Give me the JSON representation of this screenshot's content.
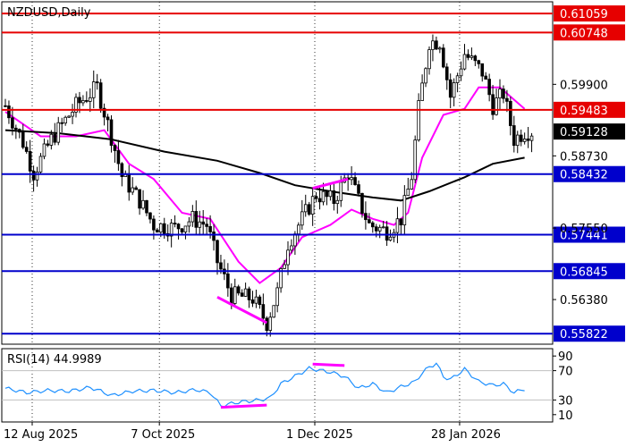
{
  "chart_data": [
    {
      "type": "candlestick",
      "title": "NZDUSD,Daily",
      "ylim": [
        0.5565,
        0.6125
      ],
      "price_ticks": [
        "0.59900",
        "0.58730",
        "0.57550",
        "0.56380"
      ],
      "current_price": {
        "label": "0.59128",
        "value": 0.59128
      },
      "levels": [
        {
          "label": "0.61059",
          "value": 0.61059,
          "kind": "resistance"
        },
        {
          "label": "0.60748",
          "value": 0.60748,
          "kind": "resistance"
        },
        {
          "label": "0.59483",
          "value": 0.59483,
          "kind": "resistance"
        },
        {
          "label": "0.58432",
          "value": 0.58432,
          "kind": "support"
        },
        {
          "label": "0.57441",
          "value": 0.57441,
          "kind": "support"
        },
        {
          "label": "0.56845",
          "value": 0.56845,
          "kind": "support"
        },
        {
          "label": "0.55822",
          "value": 0.55822,
          "kind": "support"
        }
      ],
      "x_labels": [
        "12 Aug 2025",
        "7 Oct 2025",
        "1 Dec 2025",
        "28 Jan 2026"
      ],
      "bar_count": 150,
      "price_path": [
        [
          0,
          0.5955
        ],
        [
          5,
          0.5895
        ],
        [
          8,
          0.5845
        ],
        [
          13,
          0.59
        ],
        [
          20,
          0.5955
        ],
        [
          26,
          0.5985
        ],
        [
          30,
          0.5905
        ],
        [
          33,
          0.584
        ],
        [
          38,
          0.58
        ],
        [
          42,
          0.576
        ],
        [
          48,
          0.5755
        ],
        [
          53,
          0.577
        ],
        [
          57,
          0.576
        ],
        [
          60,
          0.57
        ],
        [
          64,
          0.5645
        ],
        [
          70,
          0.564
        ],
        [
          74,
          0.56
        ],
        [
          77,
          0.565
        ],
        [
          80,
          0.573
        ],
        [
          84,
          0.577
        ],
        [
          88,
          0.581
        ],
        [
          93,
          0.58
        ],
        [
          97,
          0.5845
        ],
        [
          100,
          0.58
        ],
        [
          103,
          0.576
        ],
        [
          108,
          0.575
        ],
        [
          112,
          0.577
        ],
        [
          115,
          0.584
        ],
        [
          117,
          0.595
        ],
        [
          120,
          0.606
        ],
        [
          123,
          0.606
        ],
        [
          126,
          0.597
        ],
        [
          130,
          0.604
        ],
        [
          135,
          0.601
        ],
        [
          138,
          0.5955
        ],
        [
          141,
          0.5975
        ],
        [
          144,
          0.59
        ],
        [
          147,
          0.5913
        ]
      ],
      "series": [
        {
          "name": "",
          "type": "moving-average",
          "color": "#ff00ff",
          "values": [
            [
              0,
              0.5945
            ],
            [
              10,
              0.5905
            ],
            [
              20,
              0.5905
            ],
            [
              28,
              0.5915
            ],
            [
              35,
              0.586
            ],
            [
              42,
              0.5835
            ],
            [
              50,
              0.578
            ],
            [
              58,
              0.577
            ],
            [
              66,
              0.57
            ],
            [
              72,
              0.5665
            ],
            [
              78,
              0.569
            ],
            [
              84,
              0.574
            ],
            [
              92,
              0.576
            ],
            [
              98,
              0.5785
            ],
            [
              104,
              0.577
            ],
            [
              110,
              0.576
            ],
            [
              114,
              0.578
            ],
            [
              118,
              0.587
            ],
            [
              124,
              0.594
            ],
            [
              130,
              0.595
            ],
            [
              134,
              0.5985
            ],
            [
              140,
              0.5985
            ],
            [
              147,
              0.595
            ]
          ]
        },
        {
          "name": "",
          "type": "moving-average",
          "color": "#000000",
          "values": [
            [
              0,
              0.5915
            ],
            [
              15,
              0.591
            ],
            [
              30,
              0.59
            ],
            [
              45,
              0.588
            ],
            [
              60,
              0.5865
            ],
            [
              72,
              0.5845
            ],
            [
              82,
              0.5825
            ],
            [
              92,
              0.5815
            ],
            [
              104,
              0.5805
            ],
            [
              112,
              0.58
            ],
            [
              120,
              0.5815
            ],
            [
              130,
              0.5838
            ],
            [
              138,
              0.586
            ],
            [
              147,
              0.587
            ]
          ]
        }
      ],
      "annotations": [
        {
          "type": "divergence-line",
          "color": "#ff00ff",
          "from": [
            60,
            0.5642
          ],
          "to": [
            74,
            0.56
          ]
        },
        {
          "type": "divergence-line",
          "color": "#ff00ff",
          "from": [
            87,
            0.582
          ],
          "to": [
            97,
            0.5835
          ]
        }
      ]
    },
    {
      "type": "line",
      "title": "RSI(14) 44.9989",
      "ylim": [
        0,
        100
      ],
      "ticks": [
        "90",
        "70",
        "30",
        "10"
      ],
      "reference_lines": [
        70,
        30
      ],
      "series": [
        {
          "name": "RSI(14)",
          "color": "#1e90ff",
          "values": [
            [
              0,
              46
            ],
            [
              6,
              40
            ],
            [
              12,
              43
            ],
            [
              18,
              42
            ],
            [
              24,
              47
            ],
            [
              26,
              44
            ],
            [
              30,
              36
            ],
            [
              36,
              42
            ],
            [
              42,
              43
            ],
            [
              48,
              40
            ],
            [
              54,
              44
            ],
            [
              58,
              40
            ],
            [
              61,
              22
            ],
            [
              66,
              27
            ],
            [
              72,
              30
            ],
            [
              75,
              33
            ],
            [
              78,
              52
            ],
            [
              86,
              73
            ],
            [
              92,
              68
            ],
            [
              96,
              62
            ],
            [
              100,
              46
            ],
            [
              104,
              52
            ],
            [
              108,
              40
            ],
            [
              112,
              48
            ],
            [
              116,
              55
            ],
            [
              118,
              67
            ],
            [
              120,
              75
            ],
            [
              122,
              80
            ],
            [
              124,
              62
            ],
            [
              126,
              58
            ],
            [
              130,
              72
            ],
            [
              134,
              55
            ],
            [
              138,
              50
            ],
            [
              141,
              52
            ],
            [
              144,
              40
            ],
            [
              147,
              45
            ]
          ]
        }
      ],
      "annotations": [
        {
          "type": "divergence-line",
          "color": "#ff00ff",
          "from": [
            61,
            20
          ],
          "to": [
            74,
            23
          ]
        },
        {
          "type": "divergence-line",
          "color": "#ff00ff",
          "from": [
            87,
            79
          ],
          "to": [
            96,
            77
          ]
        }
      ]
    }
  ],
  "colors": {
    "resistance": "#e60000",
    "support": "#0000cc",
    "current_badge": "#000000",
    "bull": "#ffffff",
    "bear": "#000000",
    "rsi_ref": "#c0c0c0"
  }
}
